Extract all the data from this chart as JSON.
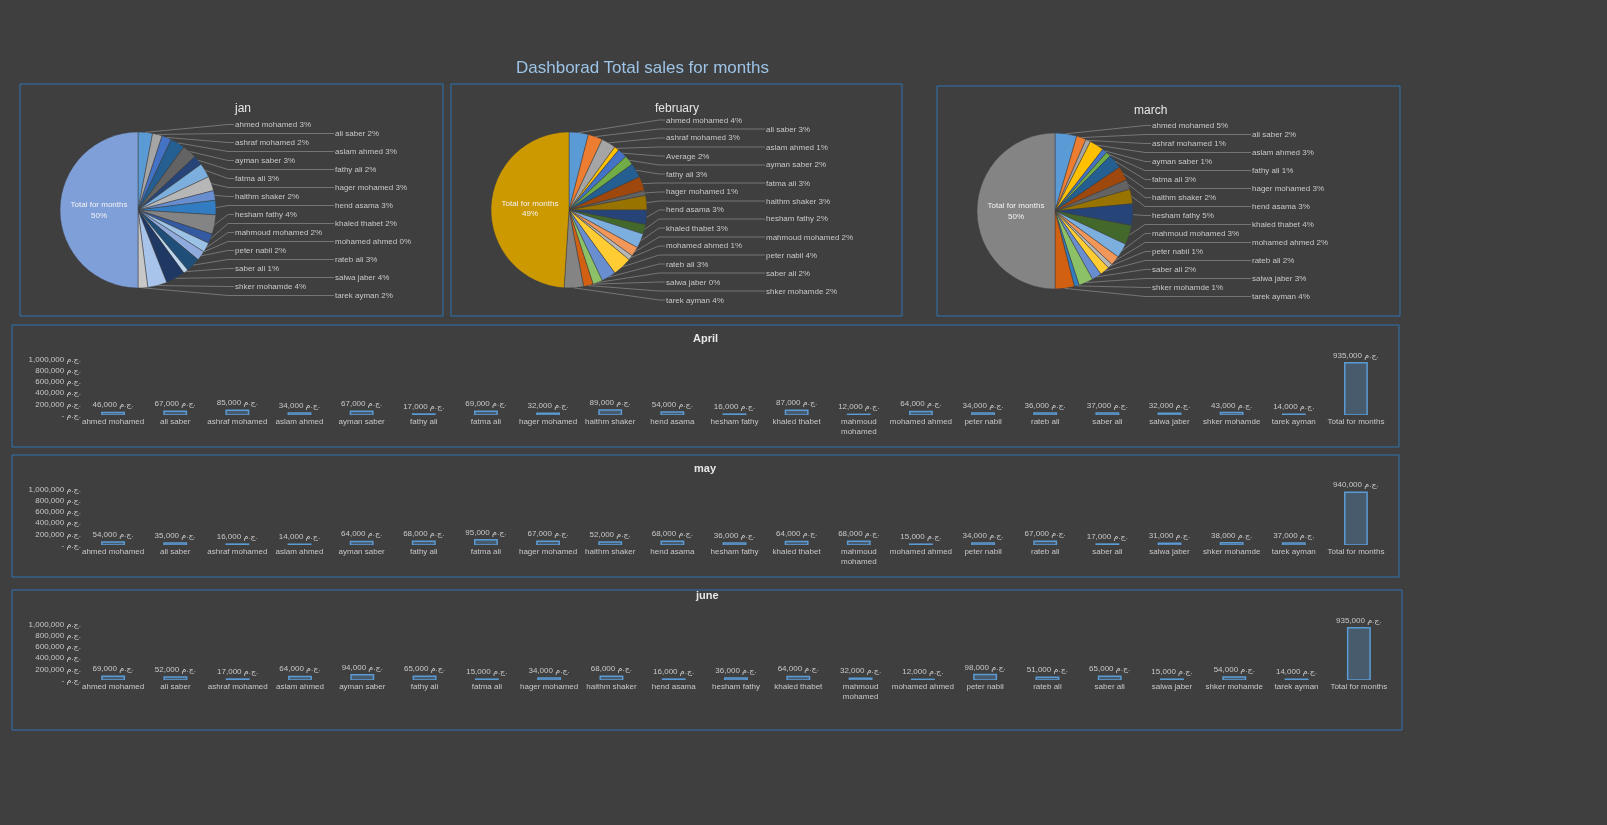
{
  "chart_data": [
    {
      "type": "other",
      "title": "Dashborad Total sales for months"
    },
    {
      "type": "pie",
      "title": "jan",
      "categories": [
        "ahmed mohamed",
        "ali saber",
        "ashraf mohamed",
        "aslam ahmed",
        "ayman saber",
        "fathy ali",
        "fatma ali",
        "hager mohamed",
        "haithm shaker",
        "hend asama",
        "hesham fathy",
        "khaled thabet",
        "mahmoud mohamed",
        "mohamed ahmed",
        "peter nabil",
        "rateb ali",
        "saber ali",
        "salwa jaber",
        "shker mohamde",
        "tarek ayman",
        "Total for months"
      ],
      "values": [
        3,
        2,
        2,
        3,
        3,
        2,
        3,
        3,
        2,
        3,
        4,
        2,
        2,
        0,
        2,
        3,
        1,
        4,
        4,
        2,
        50
      ],
      "value_labels": [
        "3%",
        "2%",
        "2%",
        "3%",
        "3%",
        "2%",
        "3%",
        "3%",
        "2%",
        "3%",
        "4%",
        "2%",
        "2%",
        "0%",
        "2%",
        "3%",
        "1%",
        "4%",
        "4%",
        "2%",
        "50%"
      ],
      "colors": [
        "#5b9bd5",
        "#a5a5a5",
        "#4472c4",
        "#255e91",
        "#636363",
        "#264478",
        "#7cafdd",
        "#b7b7b7",
        "#698ed0",
        "#327dc2",
        "#848484",
        "#335aa1",
        "#9cc3e6",
        "#c9c9c9",
        "#8faadc",
        "#1f4e79",
        "#bdd7ee",
        "#203864",
        "#a9c4eb",
        "#c8c8c8",
        "#7f9fd9"
      ]
    },
    {
      "type": "pie",
      "title": "february",
      "categories": [
        "ahmed mohamed",
        "ali saber",
        "ashraf mohamed",
        "aslam ahmed",
        "Average",
        "ayman saber",
        "fathy ali",
        "fatma ali",
        "hager mohamed",
        "haithm shaker",
        "hend asama",
        "hesham fathy",
        "khaled thabet",
        "mahmoud mohamed",
        "mohamed ahmed",
        "peter nabil",
        "rateb ali",
        "saber ali",
        "salwa jaber",
        "shker mohamde",
        "tarek ayman",
        "Total for months"
      ],
      "values": [
        4,
        3,
        3,
        1,
        2,
        2,
        3,
        3,
        1,
        3,
        3,
        2,
        3,
        2,
        1,
        4,
        3,
        2,
        0,
        2,
        4,
        49
      ],
      "value_labels": [
        "4%",
        "3%",
        "3%",
        "1%",
        "2%",
        "2%",
        "3%",
        "3%",
        "1%",
        "3%",
        "3%",
        "2%",
        "3%",
        "2%",
        "1%",
        "4%",
        "3%",
        "2%",
        "0%",
        "2%",
        "4%",
        "49%"
      ],
      "colors": [
        "#5b9bd5",
        "#ed7d31",
        "#a5a5a5",
        "#ffc000",
        "#4472c4",
        "#70ad47",
        "#255e91",
        "#9e480e",
        "#636363",
        "#997300",
        "#264478",
        "#43682b",
        "#7cafdd",
        "#f1975a",
        "#b7b7b7",
        "#ffcd33",
        "#698ed0",
        "#8cc168",
        "#327dc2",
        "#d26012",
        "#848484",
        "#cc9a00"
      ]
    },
    {
      "type": "pie",
      "title": "march",
      "categories": [
        "ahmed mohamed",
        "ali saber",
        "ashraf mohamed",
        "aslam ahmed",
        "ayman saber",
        "fathy ali",
        "fatma ali",
        "hager mohamed",
        "haithm shaker",
        "hend asama",
        "hesham fathy",
        "khaled thabet",
        "mahmoud mohamed",
        "mohamed ahmed",
        "peter nabil",
        "rateb ali",
        "saber ali",
        "salwa jaber",
        "shker mohamde",
        "tarek ayman",
        "Total for months"
      ],
      "values": [
        4.5,
        2,
        1,
        3,
        1,
        1,
        3,
        3,
        2,
        3,
        4.5,
        4,
        3,
        2,
        1,
        2,
        2,
        3,
        1,
        4,
        50
      ],
      "value_labels": [
        "5%",
        "2%",
        "1%",
        "3%",
        "1%",
        "1%",
        "3%",
        "3%",
        "2%",
        "3%",
        "5%",
        "4%",
        "3%",
        "2%",
        "1%",
        "2%",
        "2%",
        "3%",
        "1%",
        "4%",
        "50%"
      ],
      "colors": [
        "#5b9bd5",
        "#ed7d31",
        "#a5a5a5",
        "#ffc000",
        "#4472c4",
        "#70ad47",
        "#255e91",
        "#9e480e",
        "#636363",
        "#997300",
        "#264478",
        "#43682b",
        "#7cafdd",
        "#f1975a",
        "#b7b7b7",
        "#ffcd33",
        "#698ed0",
        "#8cc168",
        "#327dc2",
        "#d26012",
        "#848484"
      ]
    },
    {
      "type": "bar",
      "title": "April",
      "categories": [
        "ahmed mohamed",
        "ali saber",
        "ashraf mohamed",
        "aslam ahmed",
        "ayman saber",
        "fathy ali",
        "fatma ali",
        "hager mohamed",
        "haithm shaker",
        "hend asama",
        "hesham fathy",
        "khaled thabet",
        "mahmoud mohamed",
        "mohamed ahmed",
        "peter nabil",
        "rateb ali",
        "saber ali",
        "salwa jaber",
        "shker mohamde",
        "tarek ayman",
        "Total for months"
      ],
      "values": [
        46000,
        67000,
        85000,
        34000,
        67000,
        17000,
        69000,
        32000,
        89000,
        54000,
        16000,
        87000,
        12000,
        64000,
        34000,
        36000,
        37000,
        32000,
        43000,
        14000,
        935000
      ],
      "value_labels": [
        "46,000 ج.م.",
        "67,000 ج.م.",
        "85,000 ج.م.",
        "34,000 ج.م.",
        "67,000 ج.م.",
        "17,000 ج.م.",
        "69,000 ج.م.",
        "32,000 ج.م.",
        "89,000 ج.م.",
        "54,000 ج.م.",
        "16,000 ج.م.",
        "87,000 ج.م.",
        "12,000 ج.م.",
        "64,000 ج.م.",
        "34,000 ج.م.",
        "36,000 ج.م.",
        "37,000 ج.م.",
        "32,000 ج.م.",
        "43,000 ج.م.",
        "14,000 ج.م.",
        "935,000 ج.م."
      ],
      "color": "#5b9bd5",
      "ylim": [
        0,
        1000000
      ],
      "yticks": [
        {
          "value": 0,
          "label": "- ج.م."
        },
        {
          "value": 200000,
          "label": "200,000 ج.م."
        },
        {
          "value": 400000,
          "label": "400,000 ج.م."
        },
        {
          "value": 600000,
          "label": "600,000 ج.م."
        },
        {
          "value": 800000,
          "label": "800,000 ج.م."
        },
        {
          "value": 1000000,
          "label": "1,000,000 ج.م."
        }
      ]
    },
    {
      "type": "bar",
      "title": "may",
      "categories": [
        "ahmed mohamed",
        "ali saber",
        "ashraf mohamed",
        "aslam ahmed",
        "ayman saber",
        "fathy ali",
        "fatma ali",
        "hager mohamed",
        "haithm shaker",
        "hend asama",
        "hesham fathy",
        "khaled thabet",
        "mahmoud mohamed",
        "mohamed ahmed",
        "peter nabil",
        "rateb ali",
        "saber ali",
        "salwa jaber",
        "shker mohamde",
        "tarek ayman",
        "Total for months"
      ],
      "values": [
        54000,
        35000,
        16000,
        14000,
        64000,
        68000,
        95000,
        67000,
        52000,
        68000,
        36000,
        64000,
        68000,
        15000,
        34000,
        67000,
        17000,
        31000,
        38000,
        37000,
        940000
      ],
      "value_labels": [
        "54,000 ج.م.",
        "35,000 ج.م.",
        "16,000 ج.م.",
        "14,000 ج.م.",
        "64,000 ج.م.",
        "68,000 ج.م.",
        "95,000 ج.م.",
        "67,000 ج.م.",
        "52,000 ج.م.",
        "68,000 ج.م.",
        "36,000 ج.م.",
        "64,000 ج.م.",
        "68,000 ج.م.",
        "15,000 ج.م.",
        "34,000 ج.م.",
        "67,000 ج.م.",
        "17,000 ج.م.",
        "31,000 ج.م.",
        "38,000 ج.م.",
        "37,000 ج.م.",
        "940,000 ج.م."
      ],
      "color": "#5b9bd5",
      "ylim": [
        0,
        1000000
      ],
      "yticks": [
        {
          "value": 0,
          "label": "- ج.م."
        },
        {
          "value": 200000,
          "label": "200,000 ج.م."
        },
        {
          "value": 400000,
          "label": "400,000 ج.م."
        },
        {
          "value": 600000,
          "label": "600,000 ج.م."
        },
        {
          "value": 800000,
          "label": "800,000 ج.م."
        },
        {
          "value": 1000000,
          "label": "1,000,000 ج.م."
        }
      ]
    },
    {
      "type": "bar",
      "title": "june",
      "categories": [
        "ahmed mohamed",
        "ali saber",
        "ashraf mohamed",
        "aslam ahmed",
        "ayman saber",
        "fathy ali",
        "fatma ali",
        "hager mohamed",
        "haithm shaker",
        "hend asama",
        "hesham fathy",
        "khaled thabet",
        "mahmoud mohamed",
        "mohamed ahmed",
        "peter nabil",
        "rateb ali",
        "saber ali",
        "salwa jaber",
        "shker mohamde",
        "tarek ayman",
        "Total for months"
      ],
      "values": [
        69000,
        52000,
        17000,
        64000,
        94000,
        65000,
        15000,
        34000,
        68000,
        16000,
        36000,
        64000,
        32000,
        12000,
        98000,
        51000,
        65000,
        15000,
        54000,
        14000,
        935000
      ],
      "value_labels": [
        "69,000 ج.م.",
        "52,000 ج.م.",
        "17,000 ج.م.",
        "64,000 ج.م.",
        "94,000 ج.م.",
        "65,000 ج.م.",
        "15,000 ج.م.",
        "34,000 ج.م.",
        "68,000 ج.م.",
        "16,000 ج.م.",
        "36,000 ج.م.",
        "64,000 ج.م.",
        "32,000 ج.م.",
        "12,000 ج.م.",
        "98,000 ج.م.",
        "51,000 ج.م.",
        "65,000 ج.م.",
        "15,000 ج.م.",
        "54,000 ج.م.",
        "14,000 ج.م.",
        "935,000 ج.م."
      ],
      "color": "#5b9bd5",
      "ylim": [
        0,
        1000000
      ],
      "yticks": [
        {
          "value": 0,
          "label": "- ج.م."
        },
        {
          "value": 200000,
          "label": "200,000 ج.م."
        },
        {
          "value": 400000,
          "label": "400,000 ج.م."
        },
        {
          "value": 600000,
          "label": "600,000 ج.م."
        },
        {
          "value": 800000,
          "label": "800,000 ج.م."
        },
        {
          "value": 1000000,
          "label": "1,000,000 ج.م."
        }
      ]
    }
  ]
}
